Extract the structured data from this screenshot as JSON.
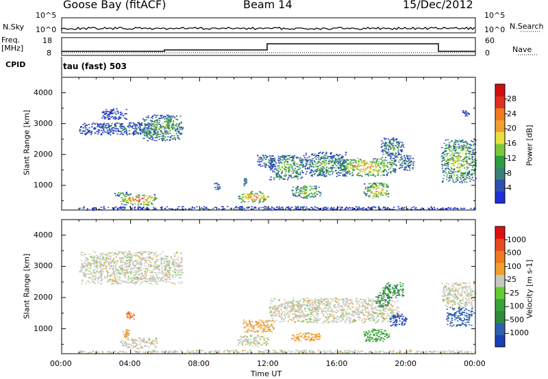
{
  "header": {
    "station": "Goose Bay (fitACF)",
    "beam": "Beam 14",
    "date": "15/Dec/2012"
  },
  "top_panels": {
    "nsky_label": "N.Sky",
    "nsky_ticks": [
      "10^5",
      "10^0"
    ],
    "nsearch_label": "N.Search",
    "nsearch_ticks": [
      "10^5",
      "10^0"
    ],
    "freq_label": "Freq.",
    "freq_unit": "[MHz]",
    "freq_ticks": [
      "18",
      "8"
    ],
    "nave_label": "Nave",
    "nave_ticks": [
      "60",
      "0"
    ],
    "cpid_label": "CPID",
    "cpid_value": "tau (fast) 503"
  },
  "chart_data": [
    {
      "type": "heatmap",
      "name": "power",
      "ylabel": "Slant Range [km]",
      "xlabel": "Time UT",
      "xlim": [
        0,
        24
      ],
      "ylim": [
        200,
        4500
      ],
      "x_ticks": [
        "00:00",
        "04:00",
        "08:00",
        "12:00",
        "16:00",
        "20:00",
        "00:00"
      ],
      "y_ticks": [
        "1000",
        "2000",
        "3000",
        "4000"
      ],
      "colorbar": {
        "label": "Power [dB]",
        "ticks": [
          "4",
          "8",
          "12",
          "16",
          "20",
          "24",
          "28"
        ],
        "colors": [
          "#1f2fd8",
          "#3050b0",
          "#3a7f7a",
          "#2e9e3e",
          "#7cc83a",
          "#e8e040",
          "#f0a030",
          "#f07a20",
          "#e03020",
          "#d01010"
        ]
      },
      "regions": [
        {
          "t0": 1.0,
          "t1": 24.0,
          "r0": 210,
          "r1": 330,
          "v": 0.15
        },
        {
          "t0": 1.0,
          "t1": 6.2,
          "r0": 2650,
          "r1": 3050,
          "v": 0.2
        },
        {
          "t0": 2.3,
          "t1": 3.8,
          "r0": 3150,
          "r1": 3500,
          "v": 0.1
        },
        {
          "t0": 4.6,
          "t1": 7.0,
          "r0": 2450,
          "r1": 3300,
          "v": 0.5
        },
        {
          "t0": 3.4,
          "t1": 5.5,
          "r0": 380,
          "r1": 720,
          "v": 0.9
        },
        {
          "t0": 3.0,
          "t1": 4.0,
          "r0": 650,
          "r1": 800,
          "v": 0.4
        },
        {
          "t0": 10.2,
          "t1": 12.0,
          "r0": 450,
          "r1": 820,
          "v": 0.85
        },
        {
          "t0": 8.8,
          "t1": 9.2,
          "r0": 850,
          "r1": 1100,
          "v": 0.3
        },
        {
          "t0": 10.5,
          "t1": 10.7,
          "r0": 1000,
          "r1": 1250,
          "v": 0.3
        },
        {
          "t0": 11.3,
          "t1": 12.3,
          "r0": 1600,
          "r1": 2000,
          "v": 0.25
        },
        {
          "t0": 12.0,
          "t1": 14.0,
          "r0": 1200,
          "r1": 2000,
          "v": 0.45
        },
        {
          "t0": 13.3,
          "t1": 15.0,
          "r0": 600,
          "r1": 1000,
          "v": 0.6
        },
        {
          "t0": 14.0,
          "t1": 16.5,
          "r0": 1300,
          "r1": 2100,
          "v": 0.4
        },
        {
          "t0": 16.0,
          "t1": 19.4,
          "r0": 1300,
          "r1": 1900,
          "v": 0.7
        },
        {
          "t0": 17.5,
          "t1": 19.0,
          "r0": 600,
          "r1": 1100,
          "v": 0.75
        },
        {
          "t0": 18.5,
          "t1": 19.8,
          "r0": 1900,
          "r1": 2600,
          "v": 0.4
        },
        {
          "t0": 19.5,
          "t1": 20.4,
          "r0": 1500,
          "r1": 2000,
          "v": 0.3
        },
        {
          "t0": 22.0,
          "t1": 24.0,
          "r0": 1100,
          "r1": 2500,
          "v": 0.55
        },
        {
          "t0": 23.2,
          "t1": 23.6,
          "r0": 3250,
          "r1": 3450,
          "v": 0.2
        }
      ]
    },
    {
      "type": "heatmap",
      "name": "velocity",
      "ylabel": "Slant Range [km]",
      "xlabel": "Time UT",
      "xlim": [
        0,
        24
      ],
      "ylim": [
        200,
        4500
      ],
      "x_ticks": [
        "00:00",
        "04:00",
        "08:00",
        "12:00",
        "16:00",
        "20:00",
        "00:00"
      ],
      "y_ticks": [
        "1000",
        "2000",
        "3000",
        "4000"
      ],
      "colorbar": {
        "label": "Velocity [m s-1]",
        "ticks": [
          "1000",
          "500",
          "100",
          "25",
          "-25",
          "-100",
          "-500",
          "-1000"
        ],
        "colors": [
          "#1a3fb8",
          "#2f5fb0",
          "#2e8a3e",
          "#3aa33a",
          "#66cc33",
          "#c8c8c0",
          "#f0a030",
          "#f07a20",
          "#e84a20",
          "#e01010"
        ]
      },
      "regions": [
        {
          "t0": 1.0,
          "t1": 24.0,
          "r0": 210,
          "r1": 330,
          "c": 5
        },
        {
          "t0": 1.0,
          "t1": 7.0,
          "r0": 2450,
          "r1": 3500,
          "c": 5
        },
        {
          "t0": 3.4,
          "t1": 5.5,
          "r0": 380,
          "r1": 720,
          "c": 5
        },
        {
          "t0": 3.5,
          "t1": 4.0,
          "r0": 700,
          "r1": 1000,
          "c": 6
        },
        {
          "t0": 3.7,
          "t1": 4.2,
          "r0": 1200,
          "r1": 1600,
          "c": 7
        },
        {
          "t0": 10.2,
          "t1": 12.0,
          "r0": 450,
          "r1": 820,
          "c": 5
        },
        {
          "t0": 10.5,
          "t1": 12.3,
          "r0": 900,
          "r1": 1300,
          "c": 6
        },
        {
          "t0": 12.0,
          "t1": 19.6,
          "r0": 1200,
          "r1": 2000,
          "c": 5
        },
        {
          "t0": 13.3,
          "t1": 15.0,
          "r0": 600,
          "r1": 900,
          "c": 6
        },
        {
          "t0": 17.5,
          "t1": 19.0,
          "r0": 600,
          "r1": 1000,
          "c": 3
        },
        {
          "t0": 18.2,
          "t1": 19.0,
          "r0": 1700,
          "r1": 2200,
          "c": 2
        },
        {
          "t0": 18.6,
          "t1": 19.8,
          "r0": 2000,
          "r1": 2500,
          "c": 2
        },
        {
          "t0": 22.0,
          "t1": 24.0,
          "r0": 1700,
          "r1": 2500,
          "c": 5
        },
        {
          "t0": 22.3,
          "t1": 23.8,
          "r0": 1100,
          "r1": 1700,
          "c": 1
        },
        {
          "t0": 19.0,
          "t1": 20.0,
          "r0": 1100,
          "r1": 1500,
          "c": 0
        }
      ]
    }
  ]
}
